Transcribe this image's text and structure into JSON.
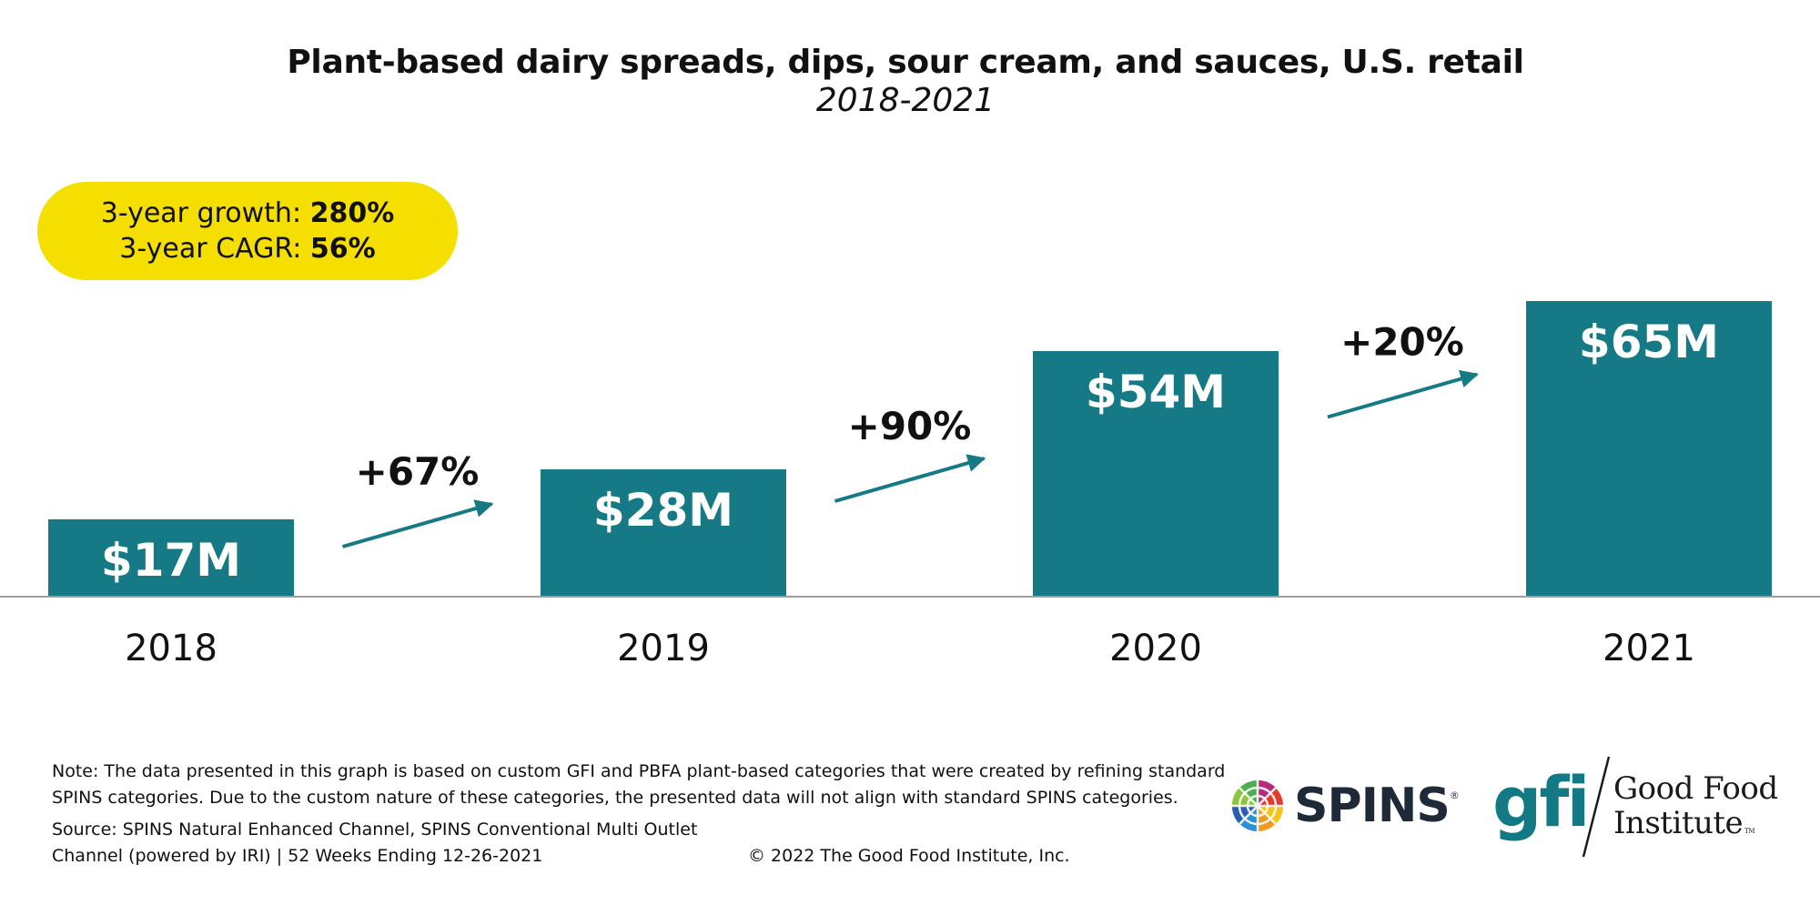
{
  "chart_data": {
    "type": "bar",
    "title": "Plant-based dairy spreads, dips, sour cream, and sauces, U.S. retail",
    "subtitle": "2018-2021",
    "categories": [
      "2018",
      "2019",
      "2020",
      "2021"
    ],
    "values": [
      17,
      28,
      54,
      65
    ],
    "value_labels": [
      "$17M",
      "$28M",
      "$54M",
      "$65M"
    ],
    "unit": "$M",
    "growth_labels": [
      "+67%",
      "+90%",
      "+20%"
    ],
    "ylim": [
      0,
      84
    ],
    "xlabel": "",
    "ylabel": "",
    "grid": false,
    "colors": {
      "bar": "#157a85",
      "arrow": "#157a85",
      "axis": "#9e9e9e",
      "bar_label": "#ffffff"
    }
  },
  "summary": {
    "growth_label": "3-year growth: ",
    "growth_value": "280%",
    "cagr_label": "3-year CAGR: ",
    "cagr_value": "56%",
    "color": "#f5df00"
  },
  "footer": {
    "note": "Note: The data presented in this graph is based on custom GFI and PBFA plant-based categories that were created by refining standard SPINS categories. Due to the custom nature of these categories, the presented data will not align with standard SPINS categories.",
    "source_line1": "Source: SPINS Natural Enhanced Channel, SPINS Conventional Multi Outlet",
    "source_line2": "Channel (powered by IRI) | 52 Weeks Ending 12-26-2021",
    "copyright": "© 2022 The Good Food Institute, Inc."
  },
  "logos": {
    "spins": "SPINS",
    "spins_reg": "®",
    "gfi_mark": "gfi",
    "gfi_name_line1": "Good Food",
    "gfi_name_line2": "Institute",
    "gfi_tm": "TM",
    "gfi_color": "#137a85"
  }
}
